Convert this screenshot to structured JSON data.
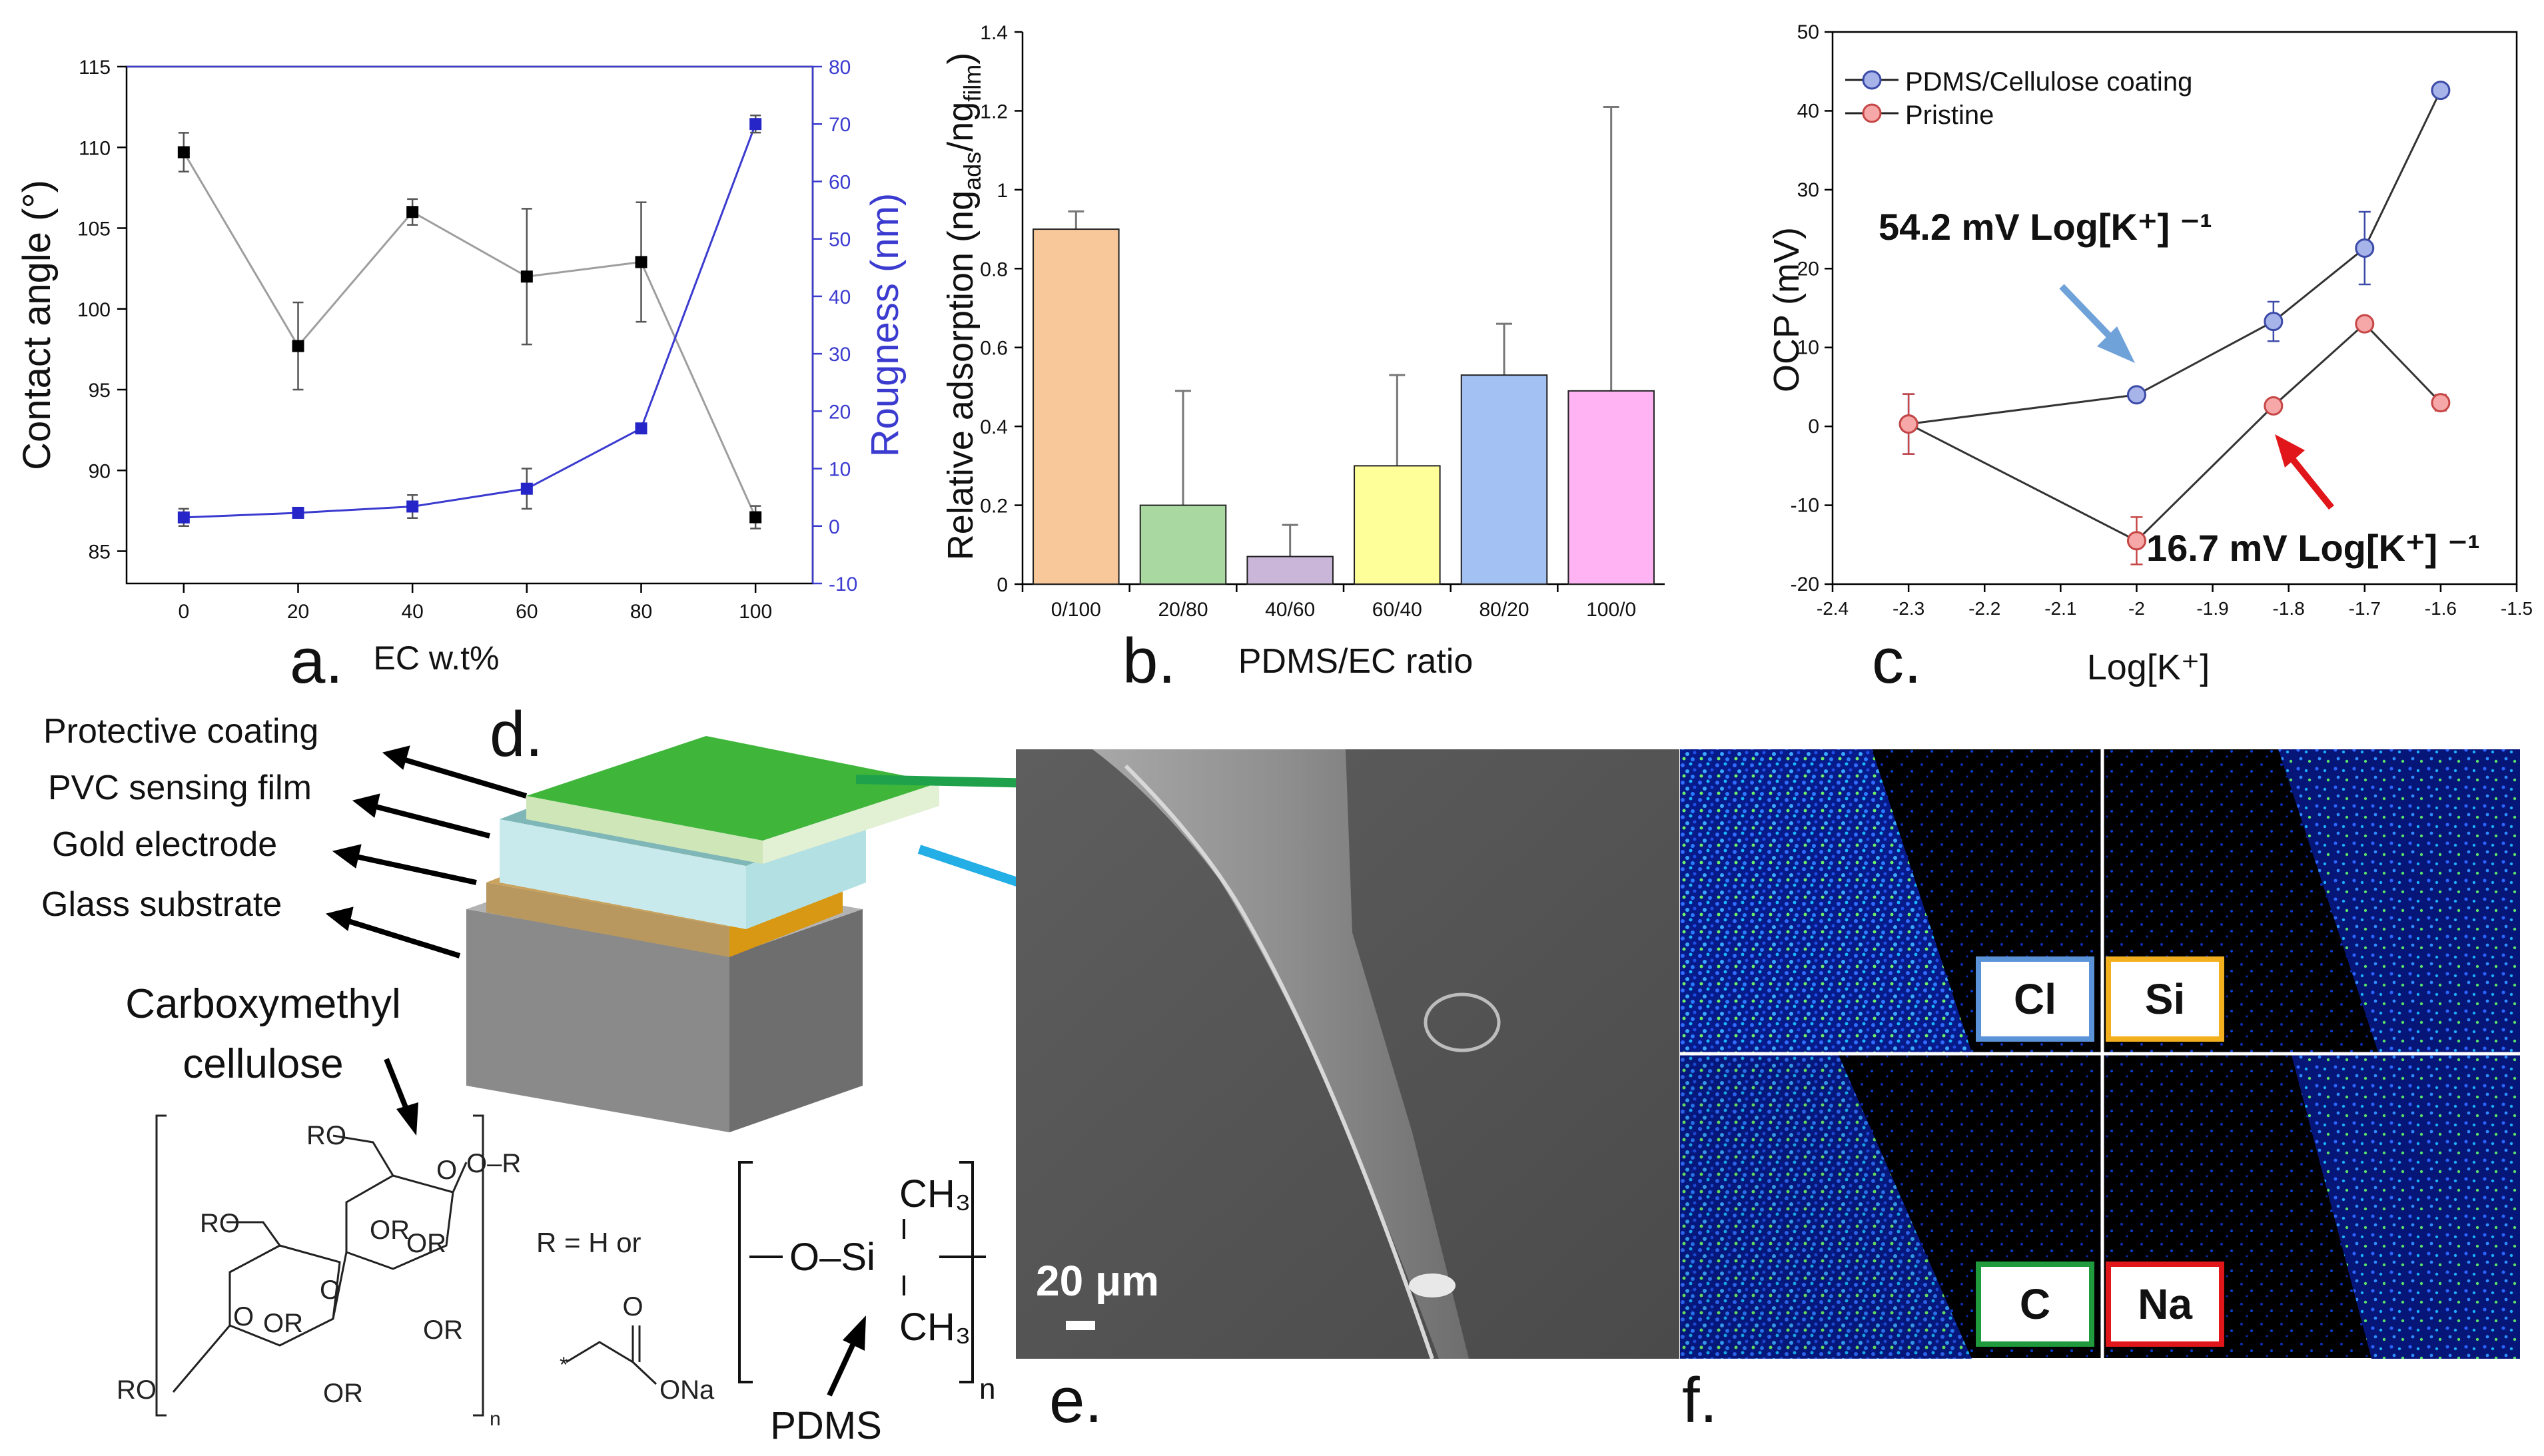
{
  "chart_data": [
    {
      "panel": "a",
      "type": "line",
      "title": "",
      "xlabel": "EC w.t%",
      "ylabel": "Contact angle (°)",
      "y2label": "Rougness (nm)",
      "xlim": [
        -10,
        110
      ],
      "ylim": [
        83,
        115
      ],
      "y2lim": [
        -10,
        80
      ],
      "xticks": [
        0,
        20,
        40,
        60,
        80,
        100
      ],
      "yticks": [
        85,
        90,
        95,
        100,
        105,
        110,
        115
      ],
      "y2ticks": [
        -10,
        0,
        10,
        20,
        30,
        40,
        50,
        60,
        70,
        80
      ],
      "series": [
        {
          "name": "Contact angle",
          "axis": "left",
          "color": "#000000",
          "line_color": "#9e9e9e",
          "x": [
            0,
            20,
            40,
            60,
            80,
            100
          ],
          "values": [
            109.7,
            97.7,
            106.0,
            102.0,
            102.9,
            87.1
          ],
          "errors": [
            1.2,
            2.7,
            0.8,
            4.2,
            3.7,
            0.7
          ]
        },
        {
          "name": "Roughness",
          "axis": "right",
          "color": "#2626c8",
          "line_color": "#3b3bd0",
          "x": [
            0,
            20,
            40,
            60,
            80,
            100
          ],
          "values": [
            1.5,
            2.3,
            3.4,
            6.5,
            17.0,
            70.0
          ],
          "errors": [
            1.5,
            0.6,
            2.0,
            3.5,
            0.8,
            1.5
          ]
        }
      ]
    },
    {
      "panel": "b",
      "type": "bar",
      "title": "",
      "xlabel": "PDMS/EC ratio",
      "ylabel": "Relative adsorption (ng_ads/ng_film)",
      "ylim": [
        0,
        1.4
      ],
      "yticks": [
        "0",
        "0.2",
        "0.4",
        "0.6",
        "0.8",
        "1",
        "1.2",
        "1.4"
      ],
      "categories": [
        "0/100",
        "20/80",
        "40/60",
        "60/40",
        "80/20",
        "100/0"
      ],
      "values": [
        0.9,
        0.2,
        0.07,
        0.3,
        0.53,
        0.49
      ],
      "errors": [
        0.045,
        0.29,
        0.08,
        0.23,
        0.13,
        0.72
      ],
      "colors": [
        "#f9c89a",
        "#a9d9a1",
        "#c9b6d9",
        "#ffff99",
        "#a3c1f2",
        "#ffb3f3"
      ]
    },
    {
      "panel": "c",
      "type": "line",
      "title": "",
      "xlabel": "Log[K⁺]",
      "ylabel": "OCP (mV)",
      "xlim": [
        -2.4,
        -1.5
      ],
      "ylim": [
        -20,
        50
      ],
      "xticks": [
        "-2.4",
        "-2.3",
        "-2.2",
        "-2.1",
        "-2",
        "-1.9",
        "-1.8",
        "-1.7",
        "-1.6",
        "-1.5"
      ],
      "yticks": [
        "-20",
        "-10",
        "0",
        "10",
        "20",
        "30",
        "40",
        "50"
      ],
      "legend_position": "top-left",
      "series": [
        {
          "name": "PDMS/Cellulose coating",
          "color": "#a7b4ea",
          "edge": "#3c4aa8",
          "x": [
            -2.3,
            -2.0,
            -1.82,
            -1.7,
            -1.6
          ],
          "values": [
            0.3,
            4.0,
            13.3,
            22.6,
            42.6
          ],
          "errors": [
            3.8,
            0.5,
            2.5,
            4.6,
            0.6
          ]
        },
        {
          "name": "Pristine",
          "color": "#f6a8a8",
          "edge": "#c64646",
          "x": [
            -2.3,
            -2.0,
            -1.82,
            -1.7,
            -1.6
          ],
          "values": [
            0.3,
            -14.5,
            2.6,
            13.0,
            3.0
          ],
          "errors": [
            3.8,
            3.0,
            0.6,
            0.7,
            1.0
          ]
        }
      ],
      "annotations": [
        {
          "text": "54.2 mV Log[K⁺] ⁻¹",
          "arrow_color": "#6ea2d8"
        },
        {
          "text": "16.7 mV Log[K⁺] ⁻¹",
          "arrow_color": "#e0161b"
        }
      ]
    }
  ],
  "panel_labels": {
    "a": "a.",
    "b": "b.",
    "c": "c.",
    "d": "d.",
    "e": "e.",
    "f": "f."
  },
  "panel_d": {
    "layers": [
      "Protective coating",
      "PVC sensing film",
      "Gold electrode",
      "Glass substrate"
    ],
    "cmc_title_line1": "Carboxymethyl",
    "cmc_title_line2": "cellulose",
    "cmc_labels": [
      "RO",
      "RO",
      "OR",
      "OR",
      "O",
      "OR",
      "OR",
      "O",
      "O–R",
      "RO",
      "OR",
      "O",
      "n"
    ],
    "r_text": "R = H or",
    "na_text": "ONa",
    "pdms_group": [
      "CH₃",
      "O–Si",
      "CH₃",
      "n"
    ],
    "pdms_label": "PDMS"
  },
  "panel_e": {
    "scale_bar": "20 μm"
  },
  "panel_f": {
    "maps": [
      "Cl",
      "Si",
      "C",
      "Na"
    ],
    "box_colors": [
      "#5b93d8",
      "#f2b01e",
      "#1f9a3c",
      "#e0161b"
    ]
  }
}
